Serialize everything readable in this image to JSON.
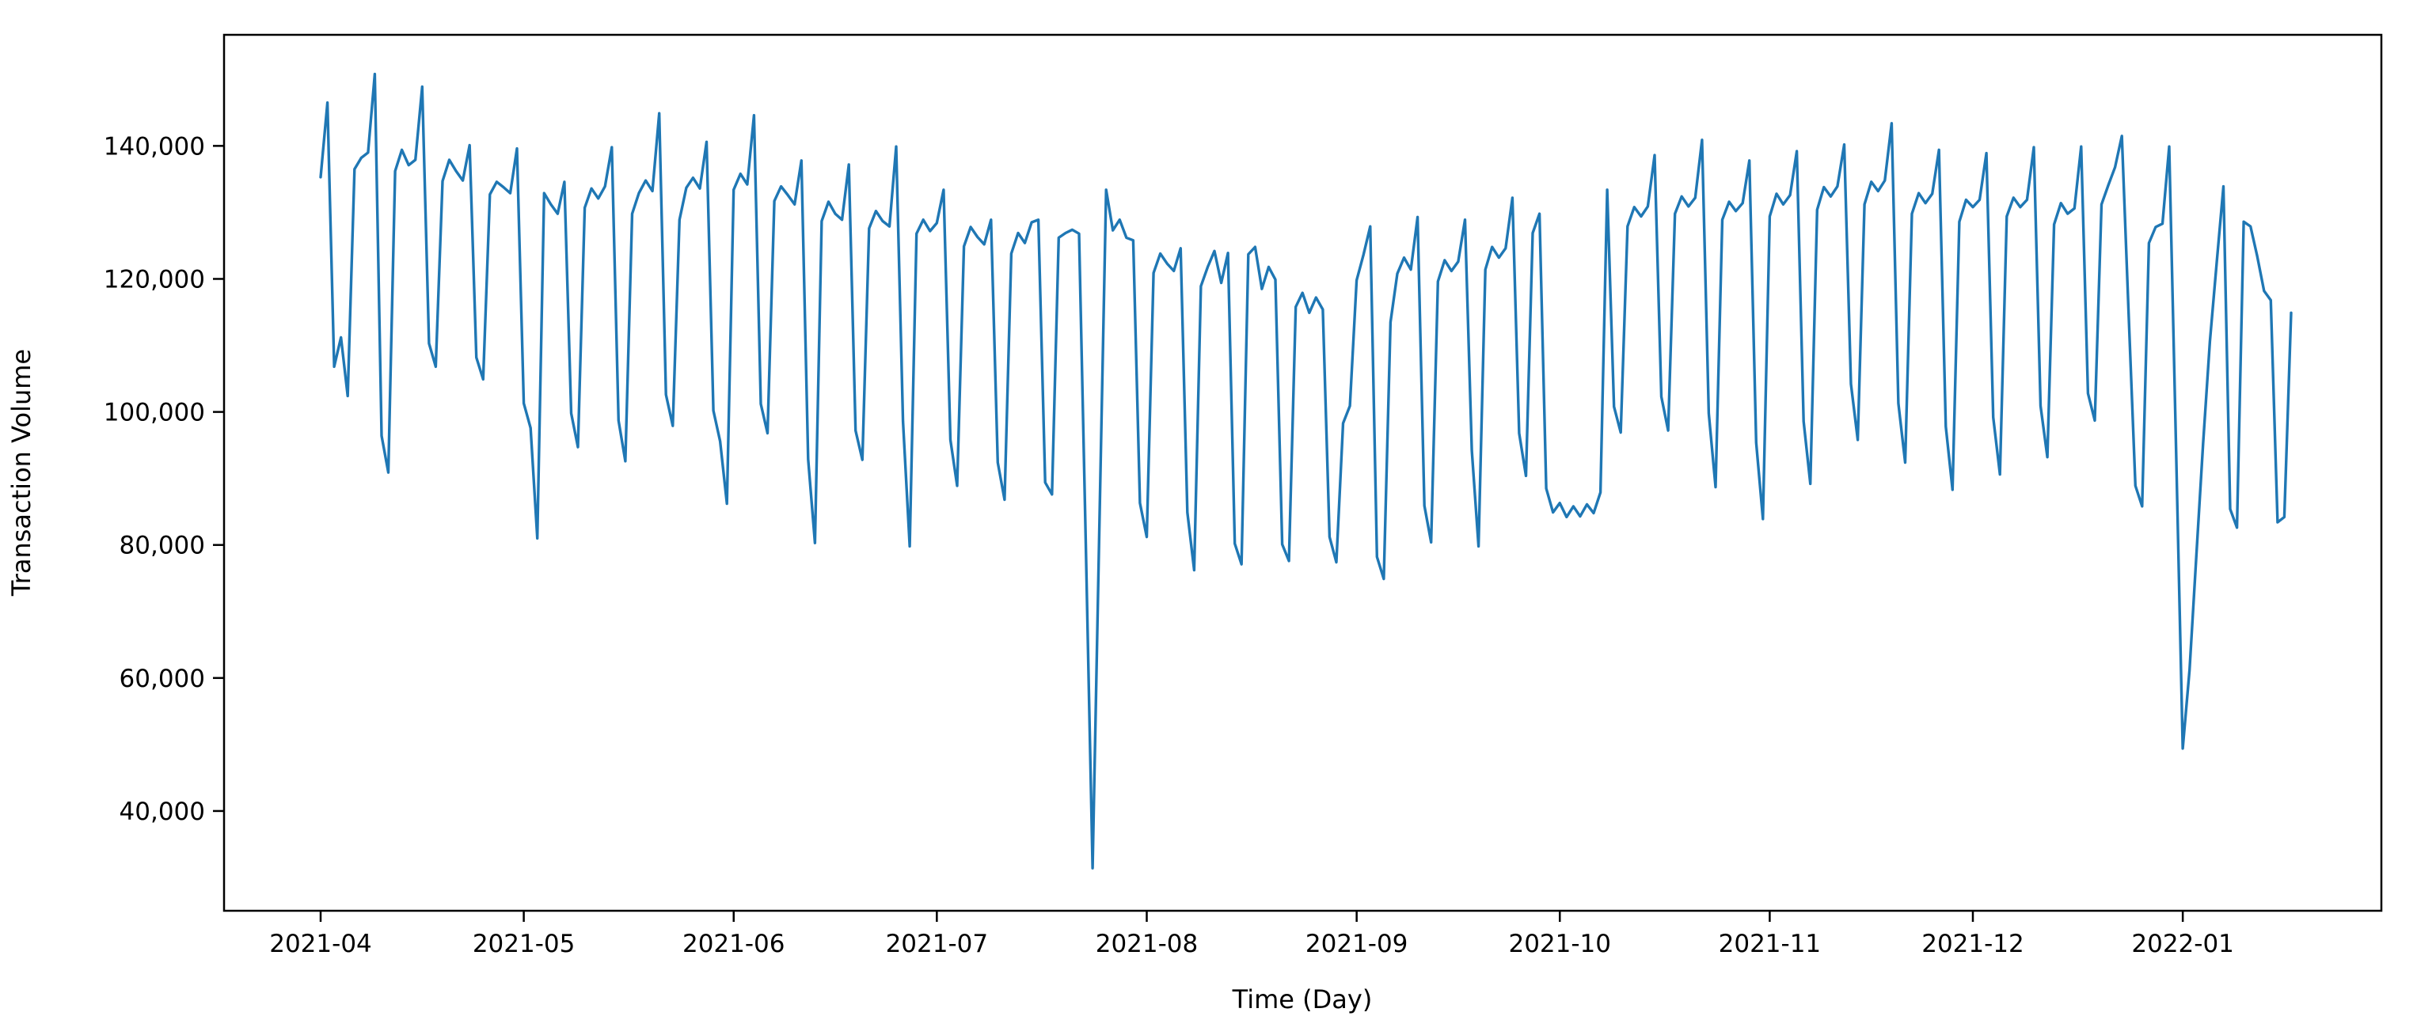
{
  "figure": {
    "background": "#ffffff",
    "frame_color": "#000000"
  },
  "chart_data": {
    "type": "line",
    "title": "",
    "xlabel": "Time (Day)",
    "ylabel": "Transaction Volume",
    "grid": false,
    "legend": false,
    "ylim": [
      25000,
      156700
    ],
    "y_ticks": [
      40000,
      60000,
      80000,
      100000,
      120000,
      140000
    ],
    "y_tick_labels": [
      "40,000",
      "60,000",
      "80,000",
      "100,000",
      "120,000",
      "140,000"
    ],
    "x_tick_labels": [
      "2021-04",
      "2021-05",
      "2021-06",
      "2021-07",
      "2021-08",
      "2021-09",
      "2021-10",
      "2021-11",
      "2021-12",
      "2022-01"
    ],
    "series": [
      {
        "name": "Transaction Volume",
        "color": "#1f77b4",
        "start_date": "2021-04-01",
        "frequency": "daily",
        "values": [
          135300,
          146500,
          106800,
          111200,
          102400,
          136500,
          138200,
          139000,
          150800,
          96400,
          90900,
          136200,
          139400,
          137100,
          137900,
          148900,
          110300,
          106800,
          134700,
          137900,
          136200,
          134800,
          140100,
          108200,
          104900,
          132700,
          134600,
          133800,
          132900,
          139600,
          101300,
          97600,
          81000,
          132900,
          131200,
          129800,
          134600,
          99800,
          94700,
          130700,
          133600,
          132100,
          133900,
          139800,
          98700,
          92600,
          129800,
          132900,
          134800,
          133200,
          144900,
          102600,
          97900,
          128900,
          133700,
          135200,
          133600,
          140600,
          100200,
          95600,
          86200,
          133400,
          135800,
          134200,
          144600,
          101200,
          96800,
          131700,
          133900,
          132600,
          131200,
          137800,
          92900,
          80300,
          128700,
          131600,
          129800,
          128900,
          137200,
          97200,
          92800,
          127600,
          130200,
          128700,
          127900,
          139900,
          98600,
          79800,
          126800,
          128900,
          127200,
          128400,
          133400,
          95800,
          88900,
          124900,
          127800,
          126300,
          125200,
          128900,
          92400,
          86800,
          123800,
          126900,
          125400,
          128500,
          128900,
          89400,
          87600,
          126200,
          126900,
          127400,
          126800,
          80200,
          31400,
          82400,
          133400,
          127300,
          128900,
          126200,
          125800,
          86300,
          81200,
          120900,
          123800,
          122300,
          121200,
          124600,
          84900,
          76200,
          118900,
          121800,
          124200,
          119400,
          123900,
          80200,
          77100,
          123700,
          124800,
          118500,
          121800,
          119900,
          80100,
          77600,
          115800,
          117900,
          114900,
          117200,
          115400,
          81200,
          77400,
          98300,
          100900,
          119800,
          123600,
          127900,
          78200,
          74900,
          113500,
          120800,
          123200,
          121400,
          129300,
          85900,
          80400,
          119600,
          122800,
          121200,
          122600,
          128900,
          94200,
          79800,
          121400,
          124800,
          123200,
          124600,
          132200,
          96800,
          90400,
          126900,
          129800,
          88500,
          84900,
          86300,
          84200,
          85800,
          84300,
          86100,
          84800,
          87900,
          133400,
          100800,
          96900,
          127900,
          130800,
          129400,
          130900,
          138600,
          102300,
          97200,
          129800,
          132400,
          130900,
          132200,
          140900,
          99800,
          88700,
          128900,
          131600,
          130200,
          131400,
          137800,
          95400,
          83900,
          129400,
          132800,
          131200,
          132600,
          139200,
          98600,
          89200,
          130400,
          133800,
          132400,
          133900,
          140200,
          104200,
          95800,
          131200,
          134600,
          133200,
          134800,
          143400,
          101300,
          92400,
          129800,
          132900,
          131400,
          132800,
          139400,
          97800,
          88300,
          128600,
          131900,
          130800,
          131900,
          138900,
          99200,
          90600,
          129400,
          132200,
          130800,
          131900,
          139800,
          100900,
          93200,
          128200,
          131400,
          129800,
          130600,
          139900,
          102800,
          98700,
          131200,
          134100,
          136800,
          141500,
          114900,
          88900,
          85800,
          125400,
          127800,
          128300,
          139900,
          94800,
          49400,
          61200,
          78400,
          95200,
          110600,
          122300,
          133900,
          85400,
          82600,
          128600,
          127900,
          123400,
          118200,
          116800,
          83400,
          84200,
          114900
        ]
      }
    ]
  }
}
